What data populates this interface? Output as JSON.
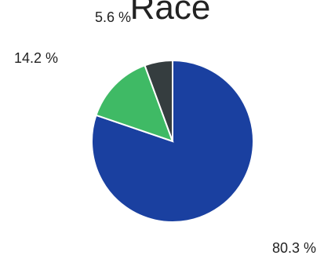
{
  "chart_data": {
    "type": "pie",
    "title": "Race",
    "categories": [
      "",
      "",
      ""
    ],
    "values": [
      80.3,
      14.2,
      5.6
    ],
    "labels": [
      "80.3 %",
      "14.2 %",
      "5.6 %"
    ],
    "colors": [
      "#1a40a0",
      "#3fba65",
      "#353d3f"
    ],
    "start_angle": "12 o'clock",
    "direction": "clockwise",
    "legend": "none"
  }
}
